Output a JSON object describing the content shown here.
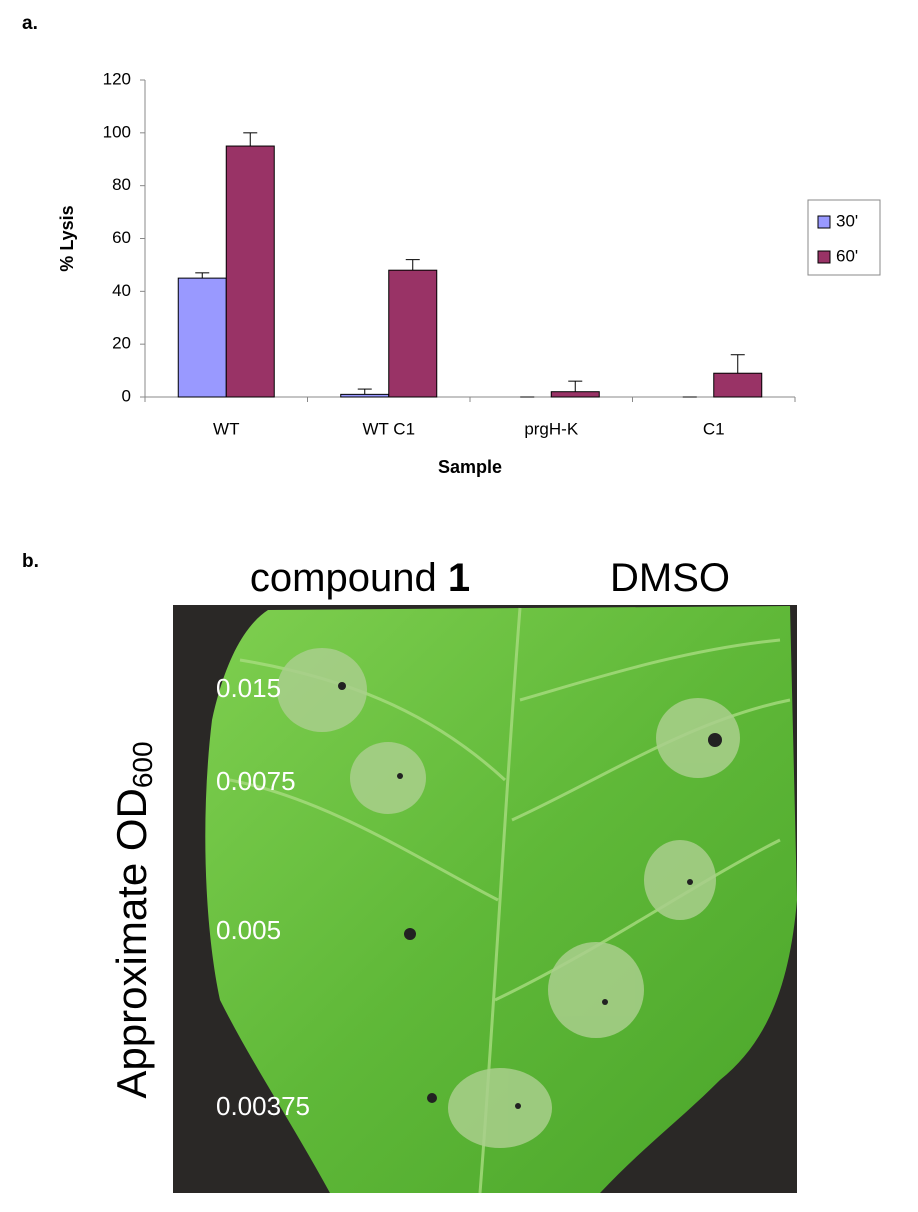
{
  "panel_labels": [
    "a.",
    "b."
  ],
  "chart_data": {
    "type": "bar",
    "xlabel": "Sample",
    "ylabel": "% Lysis",
    "categories": [
      "WT",
      "WT C1",
      "prgH-K",
      "C1"
    ],
    "series": [
      {
        "name": "30'",
        "color": "#9999ff",
        "values": [
          45,
          1,
          0,
          0
        ],
        "errors": [
          2,
          2,
          0,
          0
        ]
      },
      {
        "name": "60'",
        "color": "#993366",
        "values": [
          95,
          48,
          2,
          9
        ],
        "errors": [
          5,
          4,
          4,
          7
        ]
      }
    ],
    "ylim": [
      0,
      120
    ],
    "yticks": [
      0,
      20,
      40,
      60,
      80,
      100,
      120
    ],
    "grid": false,
    "legend": "right"
  },
  "photo": {
    "columns": [
      {
        "text": "compound",
        "bold": "1"
      },
      {
        "text": "DMSO"
      }
    ],
    "ylabel": {
      "text": "Approximate OD",
      "subscript": "600"
    },
    "rows": [
      "0.015",
      "0.0075",
      "0.005",
      "0.00375"
    ]
  }
}
